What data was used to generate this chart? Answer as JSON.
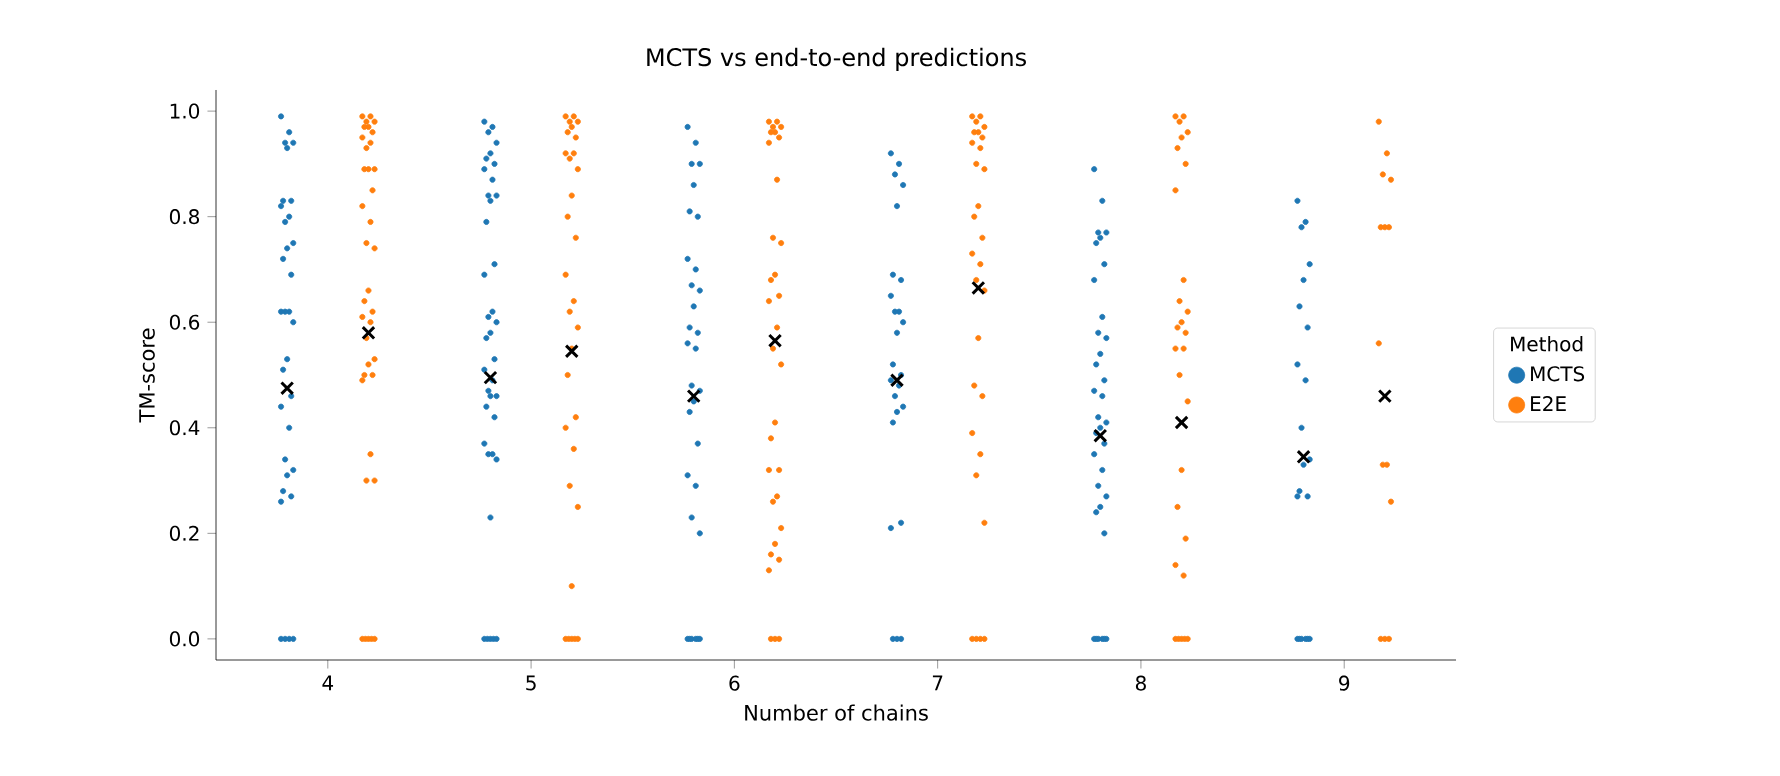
{
  "chart_data": {
    "type": "scatter",
    "title": "MCTS vs end-to-end predictions",
    "xlabel": "Number of chains",
    "ylabel": "TM-score",
    "legend_title": "Method",
    "legend": "right",
    "xlim": [
      3.45,
      9.55
    ],
    "xticks": [
      4,
      5,
      6,
      7,
      8,
      9
    ],
    "ylim": [
      -0.04,
      1.04
    ],
    "yticks": [
      {
        "value": 0,
        "label": "0.0"
      },
      0.2,
      0.4,
      0.6,
      0.8,
      {
        "value": 1,
        "label": "1.0"
      }
    ],
    "series": [
      {
        "name": "MCTS",
        "color": "#1f77b4",
        "marker": "circle",
        "x": [
          3.77,
          3.81,
          3.79,
          3.83,
          3.8,
          3.78,
          3.82,
          3.77,
          3.81,
          3.79,
          3.83,
          3.8,
          3.78,
          3.82,
          3.77,
          3.81,
          3.79,
          3.83,
          3.8,
          3.78,
          3.82,
          3.77,
          3.81,
          3.79,
          3.83,
          3.8,
          3.78,
          3.82,
          3.77,
          3.77,
          3.79,
          3.81,
          3.83,
          4.77,
          4.81,
          4.79,
          4.83,
          4.8,
          4.78,
          4.82,
          4.77,
          4.81,
          4.79,
          4.83,
          4.8,
          4.78,
          4.82,
          4.77,
          4.81,
          4.79,
          4.83,
          4.8,
          4.78,
          4.82,
          4.77,
          4.81,
          4.79,
          4.83,
          4.8,
          4.78,
          4.82,
          4.77,
          4.81,
          4.79,
          4.83,
          4.8,
          4.77,
          4.785,
          4.8,
          4.815,
          4.83,
          5.77,
          5.81,
          5.79,
          5.83,
          5.8,
          5.78,
          5.82,
          5.77,
          5.81,
          5.79,
          5.83,
          5.8,
          5.78,
          5.82,
          5.77,
          5.81,
          5.79,
          5.83,
          5.8,
          5.78,
          5.82,
          5.77,
          5.81,
          5.79,
          5.83,
          5.77,
          5.78,
          5.79,
          5.81,
          5.82,
          5.83,
          6.77,
          6.81,
          6.79,
          6.83,
          6.8,
          6.78,
          6.82,
          6.77,
          6.81,
          6.79,
          6.83,
          6.8,
          6.78,
          6.82,
          6.77,
          6.81,
          6.79,
          6.83,
          6.8,
          6.78,
          6.82,
          6.77,
          6.78,
          6.8,
          6.82,
          7.77,
          7.81,
          7.79,
          7.83,
          7.8,
          7.78,
          7.82,
          7.77,
          7.81,
          7.79,
          7.83,
          7.8,
          7.78,
          7.82,
          7.77,
          7.81,
          7.79,
          7.83,
          7.8,
          7.78,
          7.82,
          7.77,
          7.81,
          7.79,
          7.83,
          7.8,
          7.78,
          7.82,
          7.77,
          7.78,
          7.79,
          7.81,
          7.82,
          7.83,
          8.77,
          8.81,
          8.79,
          8.83,
          8.8,
          8.78,
          8.82,
          8.77,
          8.81,
          8.79,
          8.83,
          8.8,
          8.78,
          8.82,
          8.77,
          8.77,
          8.78,
          8.79,
          8.81,
          8.82,
          8.83
        ],
        "values": [
          0.99,
          0.96,
          0.94,
          0.94,
          0.93,
          0.83,
          0.83,
          0.82,
          0.8,
          0.79,
          0.75,
          0.74,
          0.72,
          0.69,
          0.62,
          0.62,
          0.62,
          0.6,
          0.53,
          0.51,
          0.46,
          0.44,
          0.4,
          0.34,
          0.32,
          0.31,
          0.28,
          0.27,
          0.26,
          0,
          0,
          0,
          0,
          0.98,
          0.97,
          0.96,
          0.94,
          0.92,
          0.91,
          0.9,
          0.89,
          0.87,
          0.84,
          0.84,
          0.83,
          0.79,
          0.71,
          0.69,
          0.62,
          0.61,
          0.6,
          0.58,
          0.57,
          0.53,
          0.51,
          0.49,
          0.47,
          0.46,
          0.46,
          0.44,
          0.42,
          0.37,
          0.35,
          0.35,
          0.34,
          0.23,
          0,
          0,
          0,
          0,
          0,
          0.97,
          0.94,
          0.9,
          0.9,
          0.86,
          0.81,
          0.8,
          0.72,
          0.7,
          0.67,
          0.66,
          0.63,
          0.59,
          0.58,
          0.56,
          0.55,
          0.48,
          0.47,
          0.45,
          0.43,
          0.37,
          0.31,
          0.29,
          0.23,
          0.2,
          0,
          0,
          0,
          0,
          0,
          0,
          0.92,
          0.9,
          0.88,
          0.86,
          0.82,
          0.69,
          0.68,
          0.65,
          0.62,
          0.62,
          0.6,
          0.58,
          0.52,
          0.5,
          0.49,
          0.48,
          0.46,
          0.44,
          0.43,
          0.41,
          0.22,
          0.21,
          0,
          0,
          0,
          0.89,
          0.83,
          0.77,
          0.77,
          0.76,
          0.75,
          0.71,
          0.68,
          0.61,
          0.58,
          0.57,
          0.54,
          0.52,
          0.49,
          0.47,
          0.46,
          0.42,
          0.41,
          0.4,
          0.39,
          0.37,
          0.35,
          0.32,
          0.29,
          0.27,
          0.25,
          0.24,
          0.2,
          0,
          0,
          0,
          0,
          0,
          0,
          0.83,
          0.79,
          0.78,
          0.71,
          0.68,
          0.63,
          0.59,
          0.52,
          0.49,
          0.4,
          0.34,
          0.33,
          0.28,
          0.27,
          0.27,
          0,
          0,
          0,
          0,
          0,
          0
        ]
      },
      {
        "name": "E2E",
        "color": "#ff7f0e",
        "marker": "circle",
        "x": [
          4.17,
          4.21,
          4.19,
          4.23,
          4.2,
          4.18,
          4.22,
          4.17,
          4.21,
          4.19,
          4.23,
          4.2,
          4.18,
          4.22,
          4.17,
          4.21,
          4.19,
          4.23,
          4.2,
          4.18,
          4.22,
          4.17,
          4.21,
          4.19,
          4.23,
          4.2,
          4.18,
          4.22,
          4.17,
          4.21,
          4.19,
          4.23,
          4.17,
          4.185,
          4.2,
          4.215,
          4.23,
          5.17,
          5.21,
          5.19,
          5.23,
          5.2,
          5.18,
          5.22,
          5.17,
          5.21,
          5.19,
          5.23,
          5.2,
          5.18,
          5.22,
          5.17,
          5.21,
          5.19,
          5.23,
          5.2,
          5.18,
          5.22,
          5.17,
          5.21,
          5.19,
          5.23,
          5.2,
          5.17,
          5.185,
          5.2,
          5.215,
          5.23,
          6.17,
          6.21,
          6.19,
          6.23,
          6.2,
          6.18,
          6.22,
          6.17,
          6.21,
          6.19,
          6.23,
          6.2,
          6.18,
          6.22,
          6.17,
          6.21,
          6.19,
          6.23,
          6.2,
          6.18,
          6.22,
          6.17,
          6.21,
          6.19,
          6.23,
          6.2,
          6.18,
          6.22,
          6.17,
          6.18,
          6.2,
          6.22,
          7.17,
          7.21,
          7.19,
          7.23,
          7.2,
          7.18,
          7.22,
          7.17,
          7.21,
          7.19,
          7.23,
          7.2,
          7.18,
          7.22,
          7.17,
          7.21,
          7.19,
          7.23,
          7.2,
          7.18,
          7.22,
          7.17,
          7.21,
          7.19,
          7.23,
          7.17,
          7.19,
          7.21,
          7.23,
          8.17,
          8.21,
          8.19,
          8.23,
          8.2,
          8.18,
          8.22,
          8.17,
          8.21,
          8.19,
          8.23,
          8.2,
          8.18,
          8.22,
          8.17,
          8.21,
          8.19,
          8.23,
          8.2,
          8.18,
          8.22,
          8.17,
          8.21,
          8.17,
          8.185,
          8.2,
          8.215,
          8.23,
          9.17,
          9.21,
          9.19,
          9.23,
          9.2,
          9.18,
          9.22,
          9.17,
          9.21,
          9.19,
          9.23,
          9.18,
          9.2,
          9.22
        ],
        "values": [
          0.99,
          0.99,
          0.98,
          0.98,
          0.97,
          0.97,
          0.96,
          0.95,
          0.94,
          0.93,
          0.89,
          0.89,
          0.89,
          0.85,
          0.82,
          0.79,
          0.75,
          0.74,
          0.66,
          0.64,
          0.62,
          0.61,
          0.6,
          0.57,
          0.53,
          0.52,
          0.5,
          0.5,
          0.49,
          0.35,
          0.3,
          0.3,
          0,
          0,
          0,
          0,
          0,
          0.99,
          0.99,
          0.98,
          0.98,
          0.97,
          0.96,
          0.95,
          0.92,
          0.92,
          0.91,
          0.89,
          0.84,
          0.8,
          0.76,
          0.69,
          0.64,
          0.62,
          0.59,
          0.55,
          0.5,
          0.42,
          0.4,
          0.36,
          0.29,
          0.25,
          0.1,
          0,
          0,
          0,
          0,
          0,
          0.98,
          0.98,
          0.97,
          0.97,
          0.96,
          0.96,
          0.95,
          0.94,
          0.87,
          0.76,
          0.75,
          0.69,
          0.68,
          0.65,
          0.64,
          0.59,
          0.55,
          0.52,
          0.41,
          0.38,
          0.32,
          0.32,
          0.27,
          0.26,
          0.21,
          0.18,
          0.16,
          0.15,
          0.13,
          0,
          0,
          0,
          0.99,
          0.99,
          0.98,
          0.97,
          0.96,
          0.96,
          0.95,
          0.94,
          0.93,
          0.9,
          0.89,
          0.82,
          0.8,
          0.76,
          0.73,
          0.71,
          0.68,
          0.66,
          0.57,
          0.48,
          0.46,
          0.39,
          0.35,
          0.31,
          0.22,
          0,
          0,
          0,
          0,
          0.99,
          0.99,
          0.98,
          0.96,
          0.95,
          0.93,
          0.9,
          0.85,
          0.68,
          0.64,
          0.62,
          0.6,
          0.59,
          0.58,
          0.55,
          0.55,
          0.5,
          0.45,
          0.32,
          0.25,
          0.19,
          0.14,
          0.12,
          0,
          0,
          0,
          0,
          0,
          0.98,
          0.92,
          0.88,
          0.87,
          0.78,
          0.78,
          0.78,
          0.56,
          0.33,
          0.33,
          0.26,
          0,
          0,
          0
        ]
      },
      {
        "color": "#000000",
        "marker": "cross",
        "x": [
          3.8,
          4.2,
          4.8,
          5.2,
          5.8,
          6.2,
          6.8,
          7.2,
          7.8,
          8.2,
          8.8,
          9.2
        ],
        "values": [
          0.475,
          0.58,
          0.495,
          0.545,
          0.46,
          0.565,
          0.49,
          0.665,
          0.385,
          0.41,
          0.345,
          0.46
        ]
      }
    ]
  }
}
